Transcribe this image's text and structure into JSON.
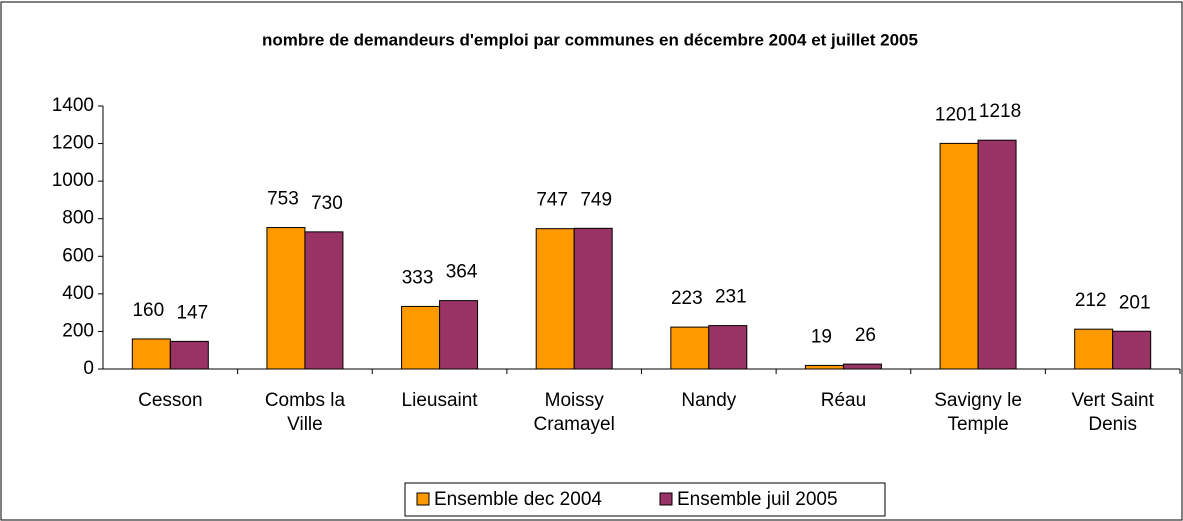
{
  "chart_data": {
    "type": "bar",
    "title": "nombre de demandeurs d'emploi par communes en décembre 2004 et juillet 2005",
    "categories": [
      "Cesson",
      "Combs la\nVille",
      "Lieusaint",
      "Moissy\nCramayel",
      "Nandy",
      "Réau",
      "Savigny le\nTemple",
      "Vert Saint\nDenis"
    ],
    "series": [
      {
        "name": "Ensemble dec 2004",
        "color": "#ff9900",
        "values": [
          160,
          753,
          333,
          747,
          223,
          19,
          1201,
          212
        ]
      },
      {
        "name": "Ensemble juil 2005",
        "color": "#993366",
        "values": [
          147,
          730,
          364,
          749,
          231,
          26,
          1218,
          201
        ]
      }
    ],
    "ylim": [
      0,
      1400
    ],
    "yticks": [
      0,
      200,
      400,
      600,
      800,
      1000,
      1200,
      1400
    ],
    "grid": false,
    "legend": "bottom"
  }
}
